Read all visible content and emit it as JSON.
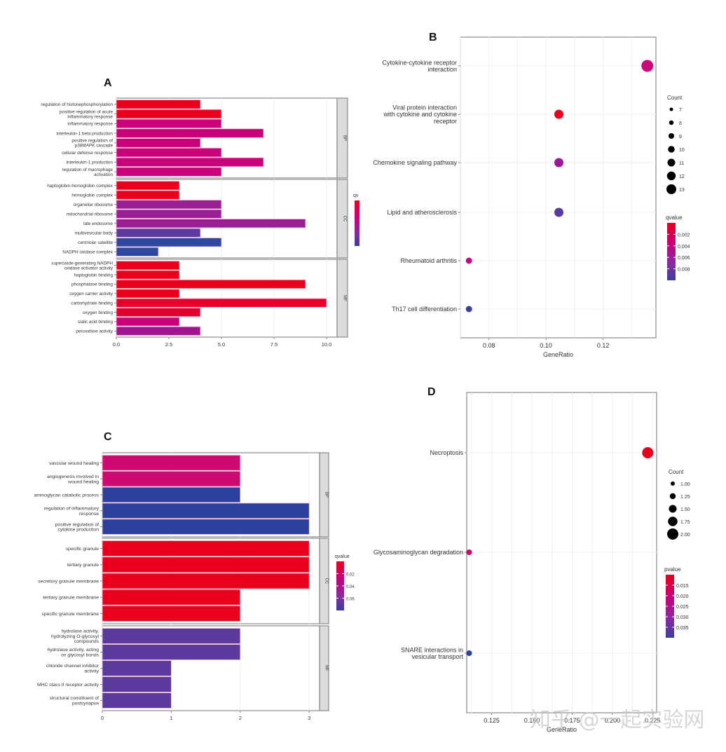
{
  "chart_data": [
    {
      "panel": "A",
      "type": "bar",
      "orientation": "horizontal",
      "xlabel": "",
      "ylabel": "",
      "xlim": [
        0,
        10.5
      ],
      "xticks": [
        "0.0",
        "2.5",
        "5.0",
        "7.5",
        "10.0"
      ],
      "xtick_values": [
        0,
        2.5,
        5,
        7.5,
        10
      ],
      "legend": {
        "title": "qv",
        "type": "colorbar",
        "colors": [
          "#e8001c",
          "#c8007a",
          "#8a2aa0",
          "#3a3f9e"
        ],
        "placement": "right"
      },
      "facets": [
        {
          "strip": "BP",
          "categories": [
            "regulation of histonephosphorylation",
            "positive regulation of acute inflammatory response",
            "inflammatory response",
            "interleukin-1 beta production",
            "positive regulation of p38MAPK cascade",
            "cellular defense response",
            "interleukin-1 production",
            "regulation of macrophage activation"
          ],
          "label_lines": [
            [
              "regulation of histonephosphorylation"
            ],
            [
              "positive regulation of acute",
              "inflammatory response"
            ],
            [
              "inflammatory response"
            ],
            [
              "interleukin-1 beta production"
            ],
            [
              "positive regulation of",
              "p38MAPK cascade"
            ],
            [
              "cellular defense response"
            ],
            [
              "interleukin-1 production"
            ],
            [
              "regulation of macrophage",
              "activation"
            ]
          ],
          "values": [
            4,
            5,
            5,
            7,
            4,
            5,
            7,
            5
          ],
          "colors": [
            "#e8001c",
            "#e8001c",
            "#c8007a",
            "#c8007a",
            "#c8007a",
            "#c8007a",
            "#c8007a",
            "#c8007a"
          ]
        },
        {
          "strip": "CC",
          "categories": [
            "haptoglobin-hemoglobin complex",
            "hemoglobin complex",
            "organellar ribosome",
            "mitochondrial ribosome",
            "late endosome",
            "multivesicular body",
            "centriolar satellite",
            "NADPH oxidase complex"
          ],
          "label_lines": [
            [
              "haptoglobin-hemoglobin complex"
            ],
            [
              "hemoglobin complex"
            ],
            [
              "organellar ribosome"
            ],
            [
              "mitochondrial ribosome"
            ],
            [
              "late endosome"
            ],
            [
              "multivesicular body"
            ],
            [
              "centriolar satellite"
            ],
            [
              "NADPH oxidase complex"
            ]
          ],
          "values": [
            3,
            3,
            5,
            5,
            9,
            4,
            5,
            2
          ],
          "colors": [
            "#e8001c",
            "#e8001c",
            "#9a1e96",
            "#9a1e96",
            "#9a1e96",
            "#5a3a9e",
            "#2e47a0",
            "#2e47a0"
          ]
        },
        {
          "strip": "MF",
          "categories": [
            "superoxide-generating NADPH oxidase activator activity",
            "haptoglobin binding",
            "phosphatase binding",
            "oxygen carrier activity",
            "carbohydrate binding",
            "oxygen binding",
            "sialic acid binding",
            "peroxidase activity"
          ],
          "label_lines": [
            [
              "superoxide-generating NADPH",
              "oxidase activator activity"
            ],
            [
              "haptoglobin binding"
            ],
            [
              "phosphatase binding"
            ],
            [
              "oxygen carrier activity"
            ],
            [
              "carbohydrate binding"
            ],
            [
              "oxygen binding"
            ],
            [
              "sialic acid binding"
            ],
            [
              "peroxidase activity"
            ]
          ],
          "values": [
            3,
            3,
            9,
            3,
            10,
            4,
            3,
            4
          ],
          "colors": [
            "#e8001c",
            "#e8001c",
            "#e8001c",
            "#e8001c",
            "#e4002a",
            "#e0002e",
            "#c8007a",
            "#a0158f"
          ]
        }
      ]
    },
    {
      "panel": "B",
      "type": "scatter",
      "xlabel": "GeneRatio",
      "ylabel": "",
      "xlim": [
        0.07,
        0.1385
      ],
      "xticks": [
        "0.08",
        "0.10",
        "0.12"
      ],
      "xtick_values": [
        0.08,
        0.1,
        0.12
      ],
      "categories": [
        "Cytokine-cytokine receptor interaction",
        "Viral protein interaction with cytokine and cytokine receptor",
        "Chemokine signaling pathway",
        "Lipid and atherosclerosis",
        "Rheumatoid arthritis",
        "Th17 cell differentiation"
      ],
      "label_lines": [
        [
          "Cytokine-cytokine receptor",
          "interaction"
        ],
        [
          "Viral protein interaction",
          "with cytokine and cytokine",
          "receptor"
        ],
        [
          "Chemokine signaling pathway"
        ],
        [
          "Lipid and atherosclerosis"
        ],
        [
          "Rheumatoid arthritis"
        ],
        [
          "Th17 cell differentiation"
        ]
      ],
      "points": [
        {
          "y": "Cytokine-cytokine receptor interaction",
          "x": 0.1355,
          "count": 13,
          "qvalue": 0.004,
          "color": "#cc0a7a"
        },
        {
          "y": "Viral protein interaction with cytokine and cytokine receptor",
          "x": 0.1045,
          "count": 10,
          "qvalue": 0.001,
          "color": "#e8001c"
        },
        {
          "y": "Chemokine signaling pathway",
          "x": 0.1045,
          "count": 10,
          "qvalue": 0.005,
          "color": "#9a1a9a"
        },
        {
          "y": "Lipid and atherosclerosis",
          "x": 0.1045,
          "count": 10,
          "qvalue": 0.0075,
          "color": "#5a3a9e"
        },
        {
          "y": "Rheumatoid arthritis",
          "x": 0.073,
          "count": 7,
          "qvalue": 0.004,
          "color": "#c00a80"
        },
        {
          "y": "Th17 cell differentiation",
          "x": 0.073,
          "count": 7,
          "qvalue": 0.009,
          "color": "#3a3f9e"
        }
      ],
      "size_legend": {
        "title": "Count",
        "values": [
          "7",
          "8",
          "9",
          "10",
          "11",
          "12",
          "13"
        ]
      },
      "color_legend": {
        "title": "qvalue",
        "ticks": [
          "0.002",
          "0.004",
          "0.006",
          "0.008"
        ],
        "colors": [
          "#e8001c",
          "#c8007a",
          "#8a2aa0",
          "#3a3f9e"
        ]
      },
      "legend_placement": "right",
      "grid": true
    },
    {
      "panel": "C",
      "type": "bar",
      "orientation": "horizontal",
      "xlabel": "",
      "ylabel": "",
      "xlim": [
        0,
        3.15
      ],
      "xticks": [
        "0",
        "1",
        "2",
        "3"
      ],
      "xtick_values": [
        0,
        1,
        2,
        3
      ],
      "legend": {
        "title": "qvalue",
        "type": "colorbar",
        "ticks": [
          "0.02",
          "0.04",
          "0.06"
        ],
        "colors": [
          "#e8001c",
          "#c8007a",
          "#8a2aa0",
          "#3a3f9e"
        ],
        "placement": "right"
      },
      "facets": [
        {
          "strip": "BP",
          "categories": [
            "vascular wound healing",
            "angiogenesis involved in wound healing",
            "aminoglycan catabolic process",
            "regulation of inflammatory response",
            "positive regulation of cytokine production"
          ],
          "label_lines": [
            [
              "vascular wound healing"
            ],
            [
              "angiogenesis involved in",
              "wound healing"
            ],
            [
              "aminoglycan catabolic process"
            ],
            [
              "regulation of inflammatory",
              "response"
            ],
            [
              "positive regulation of",
              "cytokine production"
            ]
          ],
          "values": [
            2,
            2,
            2,
            3,
            3
          ],
          "colors": [
            "#cc0a72",
            "#cc0a72",
            "#2e409e",
            "#2e409e",
            "#2e409e"
          ]
        },
        {
          "strip": "CC",
          "categories": [
            "specific granule",
            "tertiary granule",
            "secretory granule membrane",
            "tertiary granule membrane",
            "specific granule membrane"
          ],
          "label_lines": [
            [
              "specific granule"
            ],
            [
              "tertiary granule"
            ],
            [
              "secretory granule membrane"
            ],
            [
              "tertiary granule membrane"
            ],
            [
              "specific granule membrane"
            ]
          ],
          "values": [
            3,
            3,
            3,
            2,
            2
          ],
          "colors": [
            "#e8001c",
            "#e8001c",
            "#e8001c",
            "#e8001c",
            "#e8001c"
          ]
        },
        {
          "strip": "MF",
          "categories": [
            "hydrolase activity, hydrolyzing O-glycosyl compounds",
            "hydrolase activity, acting on glycosyl bonds",
            "chloride channel inhibitor activity",
            "MHC class II receptor activity",
            "structural constituent of postsynapse"
          ],
          "label_lines": [
            [
              "hydrolase activity,",
              "hydrolyzing O-glycosyl",
              "compounds"
            ],
            [
              "hydrolase activity, acting",
              "on glycosyl bonds"
            ],
            [
              "chloride channel inhibitor",
              "activity"
            ],
            [
              "MHC class II receptor activity"
            ],
            [
              "structural constituent of",
              "postsynapse"
            ]
          ],
          "values": [
            2,
            2,
            1,
            1,
            1
          ],
          "colors": [
            "#5b3a9e",
            "#5b3a9e",
            "#5b3a9e",
            "#5b3a9e",
            "#5b3a9e"
          ]
        }
      ]
    },
    {
      "panel": "D",
      "type": "scatter",
      "xlabel": "GeneRatio",
      "ylabel": "",
      "xlim": [
        0.1095,
        0.2275
      ],
      "xticks": [
        "0.125",
        "0.150",
        "0.175",
        "0.200",
        "0.225"
      ],
      "xtick_values": [
        0.125,
        0.15,
        0.175,
        0.2,
        0.225
      ],
      "categories": [
        "Necroptosis",
        "Glycosaminoglycan degradation",
        "SNARE interactions in vesicular transport"
      ],
      "label_lines": [
        [
          "Necroptosis"
        ],
        [
          "Glycosaminoglycan degradation"
        ],
        [
          "SNARE interactions in",
          "vesicular transport"
        ]
      ],
      "points": [
        {
          "y": "Necroptosis",
          "x": 0.222,
          "count": 2,
          "pvalue": 0.013,
          "color": "#e8001c"
        },
        {
          "y": "Glycosaminoglycan degradation",
          "x": 0.111,
          "count": 1,
          "pvalue": 0.02,
          "color": "#d0086a"
        },
        {
          "y": "SNARE interactions in vesicular transport",
          "x": 0.111,
          "count": 1,
          "pvalue": 0.036,
          "color": "#2e3fa0"
        }
      ],
      "size_legend": {
        "title": "Count",
        "values": [
          "1.00",
          "1.25",
          "1.50",
          "1.75",
          "2.00"
        ]
      },
      "color_legend": {
        "title": "pvalue",
        "ticks": [
          "0.015",
          "0.020",
          "0.025",
          "0.030",
          "0.035"
        ],
        "colors": [
          "#e8001c",
          "#c8007a",
          "#8a2aa0",
          "#3a3f9e"
        ]
      },
      "legend_placement": "right",
      "grid": true
    }
  ],
  "watermark": "知乎 @一起实验网",
  "panel_labels": [
    "A",
    "B",
    "C",
    "D"
  ]
}
